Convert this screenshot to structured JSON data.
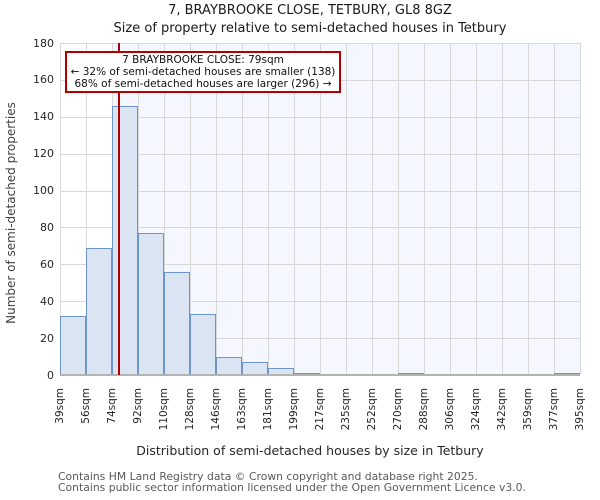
{
  "title": "7, BRAYBROOKE CLOSE, TETBURY, GL8 8GZ",
  "subtitle": "Size of property relative to semi-detached houses in Tetbury",
  "annotation": {
    "line1": "7 BRAYBROOKE CLOSE: 79sqm",
    "line2": "← 32% of semi-detached houses are smaller (138)",
    "line3": "68% of semi-detached houses are larger (296) →"
  },
  "chart_data": {
    "type": "bar",
    "title": "7, BRAYBROOKE CLOSE, TETBURY, GL8 8GZ",
    "subtitle": "Size of property relative to semi-detached houses in Tetbury",
    "categories": [
      "39sqm",
      "56sqm",
      "74sqm",
      "92sqm",
      "110sqm",
      "128sqm",
      "146sqm",
      "163sqm",
      "181sqm",
      "199sqm",
      "217sqm",
      "235sqm",
      "252sqm",
      "270sqm",
      "288sqm",
      "306sqm",
      "324sqm",
      "342sqm",
      "359sqm",
      "377sqm",
      "395sqm"
    ],
    "values": [
      32,
      69,
      146,
      77,
      56,
      33,
      10,
      7,
      4,
      1,
      0,
      0,
      0,
      1,
      0,
      0,
      0,
      0,
      0,
      1
    ],
    "xlabel": "Distribution of semi-detached houses by size in Tetbury",
    "ylabel": "Number of semi-detached properties",
    "ylim": [
      0,
      180
    ],
    "ytick_step": 20,
    "grid": true,
    "legend": "none",
    "marker_value_sqm": 79,
    "marker_label": "7 BRAYBROOKE CLOSE: 79sqm",
    "smaller_pct": 32,
    "smaller_count": 138,
    "larger_pct": 68,
    "larger_count": 296,
    "colors": {
      "bar_fill": "#dbe4f3",
      "bar_border": "#6e95cb",
      "marker_line": "#b00000",
      "annotation_border": "#b00000",
      "shade": "#f4f7fd",
      "gridline": "#d8d8d8",
      "axis_line": "#b3b3b3"
    }
  },
  "footer": {
    "line1": "Contains HM Land Registry data © Crown copyright and database right 2025.",
    "line2": "Contains public sector information licensed under the Open Government Licence v3.0."
  }
}
